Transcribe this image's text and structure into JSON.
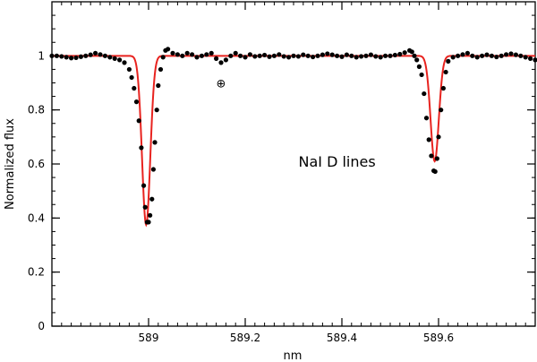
{
  "chart_data": {
    "type": "line",
    "title": "",
    "xlabel": "nm",
    "ylabel": "Normalized flux",
    "xlim": [
      588.8,
      589.8
    ],
    "ylim": [
      0,
      1.2
    ],
    "x_tick_labels": [
      {
        "value": 589.0,
        "label": "589"
      },
      {
        "value": 589.2,
        "label": "589.2"
      },
      {
        "value": 589.4,
        "label": "589.4"
      },
      {
        "value": 589.6,
        "label": "589.6"
      }
    ],
    "y_tick_labels": [
      {
        "value": 0,
        "label": "0"
      },
      {
        "value": 0.2,
        "label": "0.2"
      },
      {
        "value": 0.4,
        "label": "0.4"
      },
      {
        "value": 0.6,
        "label": "0.6"
      },
      {
        "value": 0.8,
        "label": "0.8"
      },
      {
        "value": 1.0,
        "label": "1"
      }
    ],
    "annotations": [
      {
        "text": "NaI  D  lines",
        "x": 589.39,
        "y": 0.59
      },
      {
        "text": "⊕",
        "x": 589.15,
        "y": 0.9
      }
    ],
    "series": [
      {
        "kind": "scatter",
        "color": "#000000",
        "points": [
          [
            588.8,
            1.0
          ],
          [
            588.81,
            1.0
          ],
          [
            588.82,
            0.998
          ],
          [
            588.83,
            0.995
          ],
          [
            588.84,
            0.992
          ],
          [
            588.85,
            0.993
          ],
          [
            588.86,
            0.997
          ],
          [
            588.87,
            1.0
          ],
          [
            588.88,
            1.004
          ],
          [
            588.89,
            1.01
          ],
          [
            588.9,
            1.005
          ],
          [
            588.91,
            1.0
          ],
          [
            588.92,
            0.995
          ],
          [
            588.93,
            0.99
          ],
          [
            588.94,
            0.985
          ],
          [
            588.95,
            0.975
          ],
          [
            588.96,
            0.95
          ],
          [
            588.965,
            0.92
          ],
          [
            588.97,
            0.88
          ],
          [
            588.975,
            0.83
          ],
          [
            588.98,
            0.76
          ],
          [
            588.985,
            0.66
          ],
          [
            588.99,
            0.52
          ],
          [
            588.993,
            0.44
          ],
          [
            588.997,
            0.385
          ],
          [
            589.0,
            0.385
          ],
          [
            589.003,
            0.41
          ],
          [
            589.007,
            0.47
          ],
          [
            589.01,
            0.58
          ],
          [
            589.013,
            0.68
          ],
          [
            589.017,
            0.8
          ],
          [
            589.02,
            0.89
          ],
          [
            589.025,
            0.95
          ],
          [
            589.03,
            0.995
          ],
          [
            589.035,
            1.02
          ],
          [
            589.04,
            1.025
          ],
          [
            589.05,
            1.01
          ],
          [
            589.06,
            1.005
          ],
          [
            589.07,
            1.0
          ],
          [
            589.08,
            1.01
          ],
          [
            589.09,
            1.005
          ],
          [
            589.1,
            0.995
          ],
          [
            589.11,
            1.0
          ],
          [
            589.12,
            1.005
          ],
          [
            589.13,
            1.01
          ],
          [
            589.14,
            0.99
          ],
          [
            589.15,
            0.975
          ],
          [
            589.16,
            0.985
          ],
          [
            589.17,
            1.0
          ],
          [
            589.18,
            1.01
          ],
          [
            589.19,
            1.0
          ],
          [
            589.2,
            0.995
          ],
          [
            589.21,
            1.005
          ],
          [
            589.22,
            0.998
          ],
          [
            589.23,
            1.0
          ],
          [
            589.24,
            1.003
          ],
          [
            589.25,
            0.997
          ],
          [
            589.26,
            1.0
          ],
          [
            589.27,
            1.005
          ],
          [
            589.28,
            0.998
          ],
          [
            589.29,
            0.995
          ],
          [
            589.3,
            1.0
          ],
          [
            589.31,
            0.998
          ],
          [
            589.32,
            1.004
          ],
          [
            589.33,
            1.0
          ],
          [
            589.34,
            0.996
          ],
          [
            589.35,
            1.0
          ],
          [
            589.36,
            1.004
          ],
          [
            589.37,
            1.008
          ],
          [
            589.38,
            1.004
          ],
          [
            589.39,
            1.0
          ],
          [
            589.4,
            0.997
          ],
          [
            589.41,
            1.004
          ],
          [
            589.42,
            1.0
          ],
          [
            589.43,
            0.995
          ],
          [
            589.44,
            0.998
          ],
          [
            589.45,
            1.0
          ],
          [
            589.46,
            1.004
          ],
          [
            589.47,
            0.998
          ],
          [
            589.48,
            0.995
          ],
          [
            589.49,
            1.0
          ],
          [
            589.5,
            1.0
          ],
          [
            589.51,
            1.003
          ],
          [
            589.52,
            1.006
          ],
          [
            589.53,
            1.012
          ],
          [
            589.54,
            1.02
          ],
          [
            589.545,
            1.015
          ],
          [
            589.55,
            1.0
          ],
          [
            589.555,
            0.985
          ],
          [
            589.56,
            0.96
          ],
          [
            589.565,
            0.93
          ],
          [
            589.57,
            0.86
          ],
          [
            589.575,
            0.77
          ],
          [
            589.58,
            0.69
          ],
          [
            589.585,
            0.63
          ],
          [
            589.59,
            0.575
          ],
          [
            589.593,
            0.572
          ],
          [
            589.597,
            0.62
          ],
          [
            589.6,
            0.7
          ],
          [
            589.605,
            0.8
          ],
          [
            589.61,
            0.88
          ],
          [
            589.615,
            0.94
          ],
          [
            589.62,
            0.98
          ],
          [
            589.63,
            0.995
          ],
          [
            589.64,
            1.0
          ],
          [
            589.65,
            1.005
          ],
          [
            589.66,
            1.01
          ],
          [
            589.67,
            1.0
          ],
          [
            589.68,
            0.995
          ],
          [
            589.69,
            1.0
          ],
          [
            589.7,
            1.004
          ],
          [
            589.71,
            1.0
          ],
          [
            589.72,
            0.996
          ],
          [
            589.73,
            1.0
          ],
          [
            589.74,
            1.005
          ],
          [
            589.75,
            1.008
          ],
          [
            589.76,
            1.004
          ],
          [
            589.77,
            1.0
          ],
          [
            589.78,
            0.995
          ],
          [
            589.79,
            0.99
          ],
          [
            589.8,
            0.985
          ]
        ]
      },
      {
        "kind": "line",
        "color": "#e8231f",
        "model": {
          "continuum": 1.0,
          "lines": [
            {
              "center": 588.995,
              "depth": 0.625,
              "sigma": 0.0085
            },
            {
              "center": 589.592,
              "depth": 0.39,
              "sigma": 0.0085
            }
          ]
        }
      }
    ]
  }
}
